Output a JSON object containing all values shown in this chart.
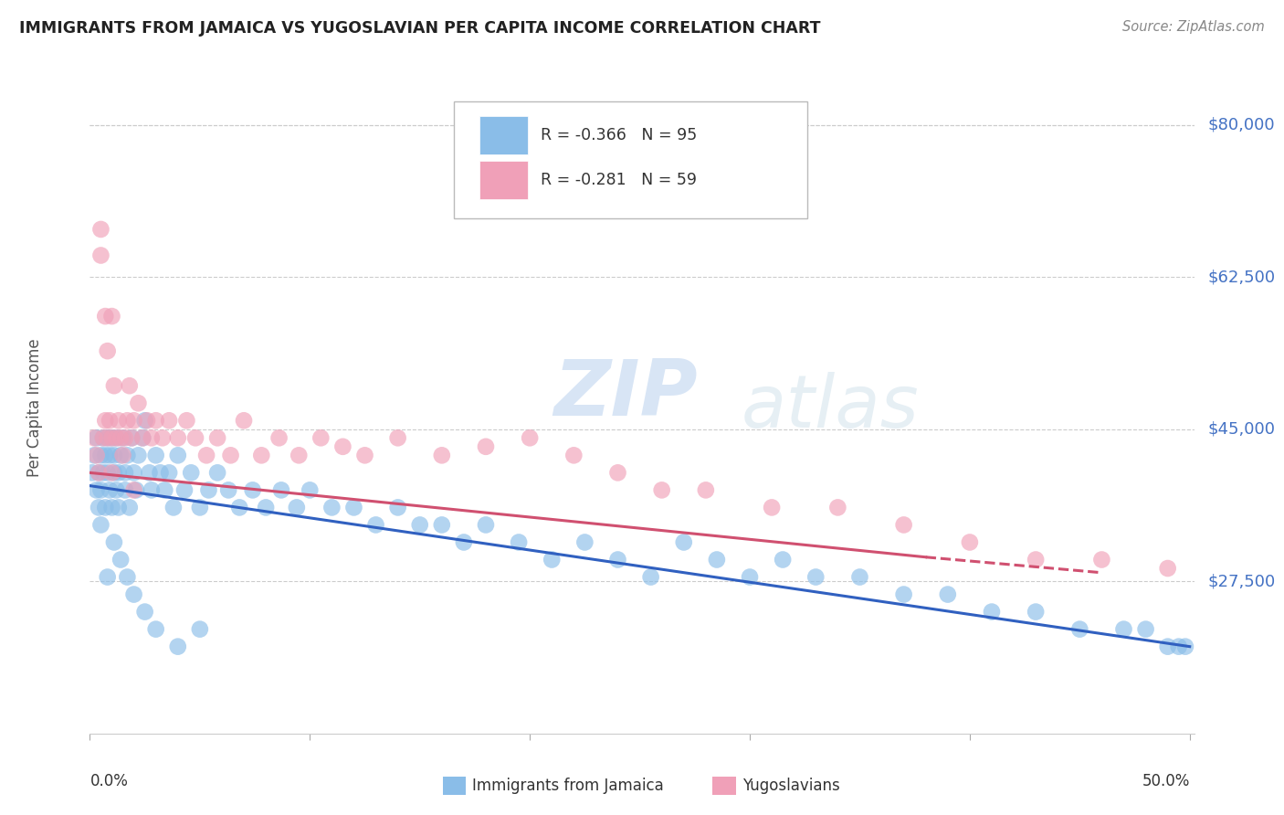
{
  "title": "IMMIGRANTS FROM JAMAICA VS YUGOSLAVIAN PER CAPITA INCOME CORRELATION CHART",
  "source": "Source: ZipAtlas.com",
  "ylabel": "Per Capita Income",
  "ymin": 10000,
  "ymax": 85000,
  "xmin": 0.0,
  "xmax": 0.502,
  "color_jamaica": "#8abde8",
  "color_yugo": "#f0a0b8",
  "color_jamaica_line": "#3060c0",
  "color_yugo_line": "#d05070",
  "watermark_zip": "ZIP",
  "watermark_atlas": "atlas",
  "jamaica_x": [
    0.001,
    0.002,
    0.003,
    0.003,
    0.004,
    0.004,
    0.005,
    0.005,
    0.006,
    0.006,
    0.007,
    0.007,
    0.008,
    0.008,
    0.009,
    0.009,
    0.01,
    0.01,
    0.011,
    0.011,
    0.012,
    0.012,
    0.013,
    0.013,
    0.014,
    0.015,
    0.016,
    0.016,
    0.017,
    0.018,
    0.019,
    0.02,
    0.021,
    0.022,
    0.024,
    0.025,
    0.027,
    0.028,
    0.03,
    0.032,
    0.034,
    0.036,
    0.038,
    0.04,
    0.043,
    0.046,
    0.05,
    0.054,
    0.058,
    0.063,
    0.068,
    0.074,
    0.08,
    0.087,
    0.094,
    0.1,
    0.11,
    0.12,
    0.13,
    0.14,
    0.15,
    0.16,
    0.17,
    0.18,
    0.195,
    0.21,
    0.225,
    0.24,
    0.255,
    0.27,
    0.285,
    0.3,
    0.315,
    0.33,
    0.35,
    0.37,
    0.39,
    0.41,
    0.43,
    0.45,
    0.47,
    0.48,
    0.49,
    0.495,
    0.498,
    0.005,
    0.008,
    0.011,
    0.014,
    0.017,
    0.02,
    0.025,
    0.03,
    0.04,
    0.05
  ],
  "jamaica_y": [
    40000,
    42000,
    38000,
    44000,
    40000,
    36000,
    42000,
    38000,
    44000,
    40000,
    42000,
    36000,
    44000,
    40000,
    38000,
    42000,
    44000,
    36000,
    40000,
    42000,
    38000,
    44000,
    40000,
    36000,
    42000,
    44000,
    38000,
    40000,
    42000,
    36000,
    44000,
    40000,
    38000,
    42000,
    44000,
    46000,
    40000,
    38000,
    42000,
    40000,
    38000,
    40000,
    36000,
    42000,
    38000,
    40000,
    36000,
    38000,
    40000,
    38000,
    36000,
    38000,
    36000,
    38000,
    36000,
    38000,
    36000,
    36000,
    34000,
    36000,
    34000,
    34000,
    32000,
    34000,
    32000,
    30000,
    32000,
    30000,
    28000,
    32000,
    30000,
    28000,
    30000,
    28000,
    28000,
    26000,
    26000,
    24000,
    24000,
    22000,
    22000,
    22000,
    20000,
    20000,
    20000,
    34000,
    28000,
    32000,
    30000,
    28000,
    26000,
    24000,
    22000,
    20000,
    22000
  ],
  "yugo_x": [
    0.002,
    0.003,
    0.004,
    0.005,
    0.005,
    0.006,
    0.007,
    0.007,
    0.008,
    0.008,
    0.009,
    0.01,
    0.01,
    0.011,
    0.012,
    0.013,
    0.014,
    0.015,
    0.016,
    0.017,
    0.018,
    0.019,
    0.02,
    0.022,
    0.024,
    0.026,
    0.028,
    0.03,
    0.033,
    0.036,
    0.04,
    0.044,
    0.048,
    0.053,
    0.058,
    0.064,
    0.07,
    0.078,
    0.086,
    0.095,
    0.105,
    0.115,
    0.125,
    0.14,
    0.16,
    0.18,
    0.2,
    0.22,
    0.24,
    0.26,
    0.28,
    0.31,
    0.34,
    0.37,
    0.4,
    0.43,
    0.46,
    0.49,
    0.01,
    0.02
  ],
  "yugo_y": [
    44000,
    42000,
    40000,
    65000,
    68000,
    44000,
    46000,
    58000,
    44000,
    54000,
    46000,
    44000,
    58000,
    50000,
    44000,
    46000,
    44000,
    42000,
    44000,
    46000,
    50000,
    44000,
    46000,
    48000,
    44000,
    46000,
    44000,
    46000,
    44000,
    46000,
    44000,
    46000,
    44000,
    42000,
    44000,
    42000,
    46000,
    42000,
    44000,
    42000,
    44000,
    43000,
    42000,
    44000,
    42000,
    43000,
    44000,
    42000,
    40000,
    38000,
    38000,
    36000,
    36000,
    34000,
    32000,
    30000,
    30000,
    29000,
    40000,
    38000
  ],
  "ytick_vals": [
    27500,
    45000,
    62500,
    80000
  ],
  "ytick_labels": [
    "$27,500",
    "$45,000",
    "$62,500",
    "$80,000"
  ],
  "xtick_positions": [
    0.0,
    0.1,
    0.2,
    0.3,
    0.4,
    0.5
  ]
}
